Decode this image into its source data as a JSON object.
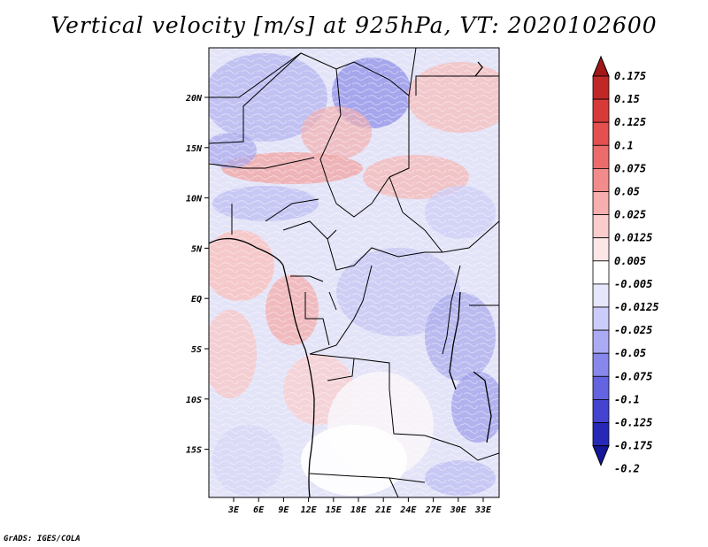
{
  "title": "Vertical velocity [m/s] at 925hPa, VT: 2020102600",
  "credit": "GrADS: IGES/COLA",
  "map": {
    "latitude_labels": [
      "20N",
      "15N",
      "10N",
      "5N",
      "EQ",
      "5S",
      "10S",
      "15S"
    ],
    "longitude_labels": [
      "3E",
      "6E",
      "9E",
      "12E",
      "15E",
      "18E",
      "21E",
      "24E",
      "27E",
      "30E",
      "33E"
    ]
  },
  "colorbar": {
    "levels": [
      "0.175",
      "0.15",
      "0.125",
      "0.1",
      "0.075",
      "0.05",
      "0.025",
      "0.0125",
      "0.005",
      "-0.005",
      "-0.0125",
      "-0.025",
      "-0.05",
      "-0.075",
      "-0.1",
      "-0.125",
      "-0.175",
      "-0.2"
    ],
    "colors": [
      "#a01818",
      "#c02828",
      "#d83a3a",
      "#e45050",
      "#ec6c6c",
      "#f28c8c",
      "#f7aeae",
      "#fbcccc",
      "#fde6e6",
      "#ffffff",
      "#e6e6fd",
      "#ccccfb",
      "#ababf5",
      "#8888ec",
      "#6464e0",
      "#4444d0",
      "#2828b8",
      "#16169a"
    ]
  }
}
